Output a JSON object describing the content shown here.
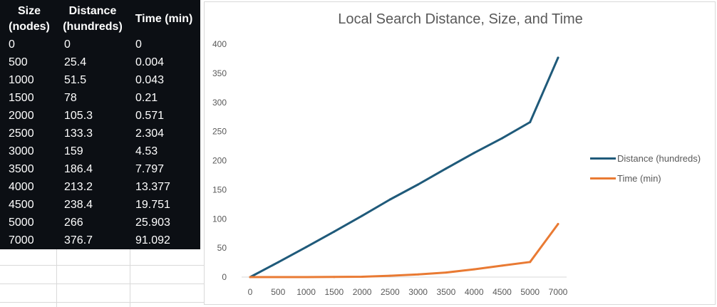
{
  "table": {
    "headers": [
      [
        "Size",
        "(nodes)"
      ],
      [
        "Distance",
        "(hundreds)"
      ],
      [
        "Time (min)"
      ]
    ],
    "rows": [
      [
        "0",
        "0",
        "0"
      ],
      [
        "500",
        "25.4",
        "0.004"
      ],
      [
        "1000",
        "51.5",
        "0.043"
      ],
      [
        "1500",
        "78",
        "0.21"
      ],
      [
        "2000",
        "105.3",
        "0.571"
      ],
      [
        "2500",
        "133.3",
        "2.304"
      ],
      [
        "3000",
        "159",
        "4.53"
      ],
      [
        "3500",
        "186.4",
        "7.797"
      ],
      [
        "4000",
        "213.2",
        "13.377"
      ],
      [
        "4500",
        "238.4",
        "19.751"
      ],
      [
        "5000",
        "266",
        "25.903"
      ],
      [
        "7000",
        "376.7",
        "91.092"
      ]
    ]
  },
  "chart_data": {
    "type": "line",
    "title": "Local Search Distance, Size, and Time",
    "categories": [
      "0",
      "500",
      "1000",
      "1500",
      "2000",
      "2500",
      "3000",
      "3500",
      "4000",
      "4500",
      "5000",
      "7000"
    ],
    "series": [
      {
        "name": "Distance (hundreds)",
        "color": "#1f5a7a",
        "values": [
          0,
          25.4,
          51.5,
          78,
          105.3,
          133.3,
          159,
          186.4,
          213.2,
          238.4,
          266,
          376.7
        ]
      },
      {
        "name": "Time (min)",
        "color": "#e97a33",
        "values": [
          0,
          0.004,
          0.043,
          0.21,
          0.571,
          2.304,
          4.53,
          7.797,
          13.377,
          19.751,
          25.903,
          91.092
        ]
      }
    ],
    "yticks": [
      "0",
      "50",
      "100",
      "150",
      "200",
      "250",
      "300",
      "350",
      "400"
    ],
    "ylim": [
      0,
      400
    ],
    "grid": false,
    "legend": "right"
  }
}
